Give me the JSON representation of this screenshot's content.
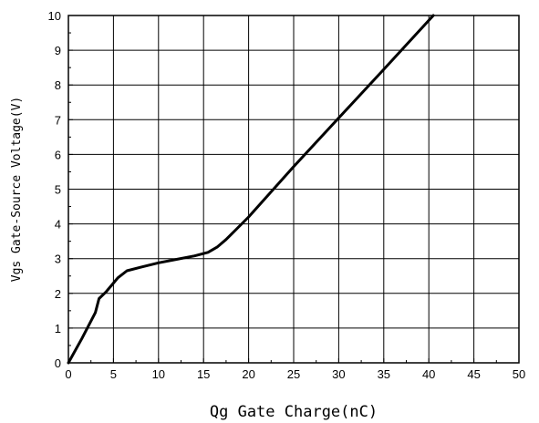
{
  "chart_data": {
    "type": "line",
    "title": "",
    "xlabel": "Qg Gate Charge(nC)",
    "ylabel": "Vgs Gate-Source Voltage(V)",
    "xlim": [
      0,
      50
    ],
    "ylim": [
      0,
      10
    ],
    "x_ticks": [
      0,
      5,
      10,
      15,
      20,
      25,
      30,
      35,
      40,
      45,
      50
    ],
    "y_ticks": [
      0,
      1,
      2,
      3,
      4,
      5,
      6,
      7,
      8,
      9,
      10
    ],
    "grid": true,
    "legend": "none",
    "series": [
      {
        "color": "#000000",
        "x": [
          0,
          1.5,
          3,
          3.4,
          4.2,
          5.5,
          6.5,
          8,
          10,
          12,
          14,
          15.5,
          16.5,
          17.5,
          20,
          25,
          30,
          35,
          40.5
        ],
        "y": [
          0,
          0.7,
          1.45,
          1.85,
          2.05,
          2.45,
          2.65,
          2.75,
          2.88,
          2.98,
          3.08,
          3.18,
          3.33,
          3.55,
          4.2,
          5.65,
          7.05,
          8.45,
          10
        ]
      }
    ]
  }
}
